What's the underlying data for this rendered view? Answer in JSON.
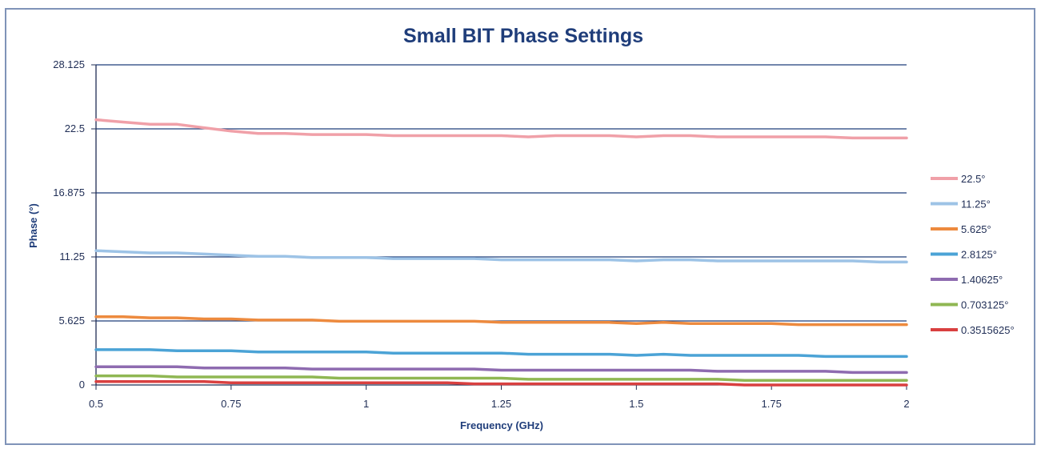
{
  "chart_data": {
    "type": "line",
    "title": "Small BIT Phase Settings",
    "xlabel": "Frequency (GHz)",
    "ylabel": "Phase (°)",
    "xlim": [
      0.5,
      2
    ],
    "ylim": [
      0,
      28.125
    ],
    "x_ticks": [
      0.5,
      0.75,
      1,
      1.25,
      1.5,
      1.75,
      2
    ],
    "x_tick_labels": [
      "0.5",
      "0.75",
      "1",
      "1.25",
      "1.5",
      "1.75",
      "2"
    ],
    "y_ticks": [
      0,
      5.625,
      11.25,
      16.875,
      22.5,
      28.125
    ],
    "y_tick_labels": [
      "0",
      "5.625",
      "11.25",
      "16.875",
      "22.5",
      "28.125"
    ],
    "grid": "horizontal",
    "legend_position": "right",
    "x": [
      0.5,
      0.55,
      0.6,
      0.65,
      0.7,
      0.75,
      0.8,
      0.85,
      0.9,
      0.95,
      1.0,
      1.05,
      1.1,
      1.15,
      1.2,
      1.25,
      1.3,
      1.35,
      1.4,
      1.45,
      1.5,
      1.55,
      1.6,
      1.65,
      1.7,
      1.75,
      1.8,
      1.85,
      1.9,
      1.95,
      2.0
    ],
    "series": [
      {
        "name": "22.5°",
        "color": "#f0a0a8",
        "values": [
          23.3,
          23.1,
          22.9,
          22.9,
          22.6,
          22.3,
          22.1,
          22.1,
          22.0,
          22.0,
          22.0,
          21.9,
          21.9,
          21.9,
          21.9,
          21.9,
          21.8,
          21.9,
          21.9,
          21.9,
          21.8,
          21.9,
          21.9,
          21.8,
          21.8,
          21.8,
          21.8,
          21.8,
          21.7,
          21.7,
          21.7
        ]
      },
      {
        "name": "11.25°",
        "color": "#9dc3e6",
        "values": [
          11.8,
          11.7,
          11.6,
          11.6,
          11.5,
          11.4,
          11.3,
          11.3,
          11.2,
          11.2,
          11.2,
          11.1,
          11.1,
          11.1,
          11.1,
          11.0,
          11.0,
          11.0,
          11.0,
          11.0,
          10.9,
          11.0,
          11.0,
          10.9,
          10.9,
          10.9,
          10.9,
          10.9,
          10.9,
          10.8,
          10.8
        ]
      },
      {
        "name": "5.625°",
        "color": "#ed8a3e",
        "values": [
          6.0,
          6.0,
          5.9,
          5.9,
          5.8,
          5.8,
          5.7,
          5.7,
          5.7,
          5.6,
          5.6,
          5.6,
          5.6,
          5.6,
          5.6,
          5.5,
          5.5,
          5.5,
          5.5,
          5.5,
          5.4,
          5.5,
          5.4,
          5.4,
          5.4,
          5.4,
          5.3,
          5.3,
          5.3,
          5.3,
          5.3
        ]
      },
      {
        "name": "2.8125°",
        "color": "#4ba3d6",
        "values": [
          3.1,
          3.1,
          3.1,
          3.0,
          3.0,
          3.0,
          2.9,
          2.9,
          2.9,
          2.9,
          2.9,
          2.8,
          2.8,
          2.8,
          2.8,
          2.8,
          2.7,
          2.7,
          2.7,
          2.7,
          2.6,
          2.7,
          2.6,
          2.6,
          2.6,
          2.6,
          2.6,
          2.5,
          2.5,
          2.5,
          2.5
        ]
      },
      {
        "name": "1.40625°",
        "color": "#8e6bb0",
        "values": [
          1.6,
          1.6,
          1.6,
          1.6,
          1.5,
          1.5,
          1.5,
          1.5,
          1.4,
          1.4,
          1.4,
          1.4,
          1.4,
          1.4,
          1.4,
          1.3,
          1.3,
          1.3,
          1.3,
          1.3,
          1.3,
          1.3,
          1.3,
          1.2,
          1.2,
          1.2,
          1.2,
          1.2,
          1.1,
          1.1,
          1.1
        ]
      },
      {
        "name": "0.703125°",
        "color": "#8fb753",
        "values": [
          0.8,
          0.8,
          0.8,
          0.7,
          0.7,
          0.7,
          0.7,
          0.7,
          0.7,
          0.6,
          0.6,
          0.6,
          0.6,
          0.6,
          0.6,
          0.6,
          0.5,
          0.5,
          0.5,
          0.5,
          0.5,
          0.5,
          0.5,
          0.5,
          0.4,
          0.4,
          0.4,
          0.4,
          0.4,
          0.4,
          0.4
        ]
      },
      {
        "name": "0.3515625°",
        "color": "#d94040",
        "values": [
          0.3,
          0.3,
          0.3,
          0.3,
          0.3,
          0.2,
          0.2,
          0.2,
          0.2,
          0.2,
          0.2,
          0.2,
          0.2,
          0.2,
          0.1,
          0.1,
          0.1,
          0.1,
          0.1,
          0.1,
          0.1,
          0.1,
          0.1,
          0.1,
          0.0,
          0.0,
          0.0,
          0.0,
          0.0,
          0.0,
          0.0
        ]
      }
    ]
  },
  "colors": {
    "title": "#1f3d7a",
    "axis": "#1f2d55",
    "grid": "#1f3d7a",
    "frame": "#7f93b8"
  }
}
